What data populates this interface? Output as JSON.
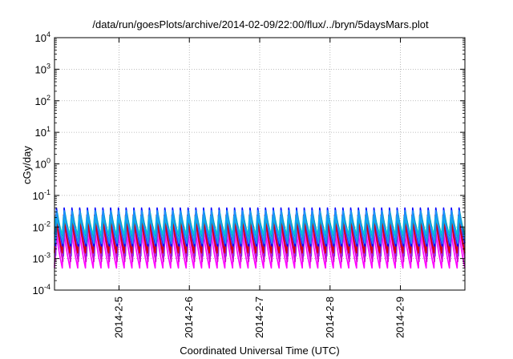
{
  "chart_data": {
    "type": "line",
    "title": "/data/run/goesPlots/archive/2014-02-09/22:00/flux/../bryn/5daysMars.plot",
    "xlabel": "Coordinated Universal Time (UTC)",
    "ylabel": "cGy/day",
    "yscale": "log",
    "ylim": [
      0.0001,
      10000
    ],
    "y_ticks": [
      {
        "value": 0.0001,
        "base": "10",
        "exp": "-4"
      },
      {
        "value": 0.001,
        "base": "10",
        "exp": "-3"
      },
      {
        "value": 0.01,
        "base": "10",
        "exp": "-2"
      },
      {
        "value": 0.1,
        "base": "10",
        "exp": "-1"
      },
      {
        "value": 1,
        "base": "10",
        "exp": "0"
      },
      {
        "value": 10,
        "base": "10",
        "exp": "1"
      },
      {
        "value": 100,
        "base": "10",
        "exp": "2"
      },
      {
        "value": 1000,
        "base": "10",
        "exp": "3"
      },
      {
        "value": 10000,
        "base": "10",
        "exp": "4"
      }
    ],
    "xlim": [
      "2014-02-04T02:00",
      "2014-02-09T22:00"
    ],
    "x_ticks": [
      {
        "value": "2014-02-05T00:00",
        "label": "2014-2-5"
      },
      {
        "value": "2014-02-06T00:00",
        "label": "2014-2-6"
      },
      {
        "value": "2014-02-07T00:00",
        "label": "2014-2-7"
      },
      {
        "value": "2014-02-08T00:00",
        "label": "2014-2-8"
      },
      {
        "value": "2014-02-09T00:00",
        "label": "2014-2-9"
      }
    ],
    "grid": true,
    "legend": "none",
    "pattern": {
      "period_hours": 2.65,
      "cycles": 53
    },
    "series": [
      {
        "color": "#ff00ff",
        "peak": 0.012,
        "trough": 0.0005
      },
      {
        "color": "#d000d0",
        "peak": 0.02,
        "trough": 0.0008
      },
      {
        "color": "#8a2be2",
        "peak": 0.03,
        "trough": 0.0012
      },
      {
        "color": "#dd0000",
        "peak": 0.03,
        "trough": 0.0015
      },
      {
        "color": "#0000ff",
        "peak": 0.05,
        "trough": 0.0025
      },
      {
        "color": "#00aaaa",
        "peak": 0.035,
        "trough": 0.004
      },
      {
        "color": "#00cccc",
        "peak": 0.025,
        "trough": 0.006
      },
      {
        "color": "#1e90ff",
        "peak": 0.04,
        "trough": 0.003
      }
    ]
  }
}
